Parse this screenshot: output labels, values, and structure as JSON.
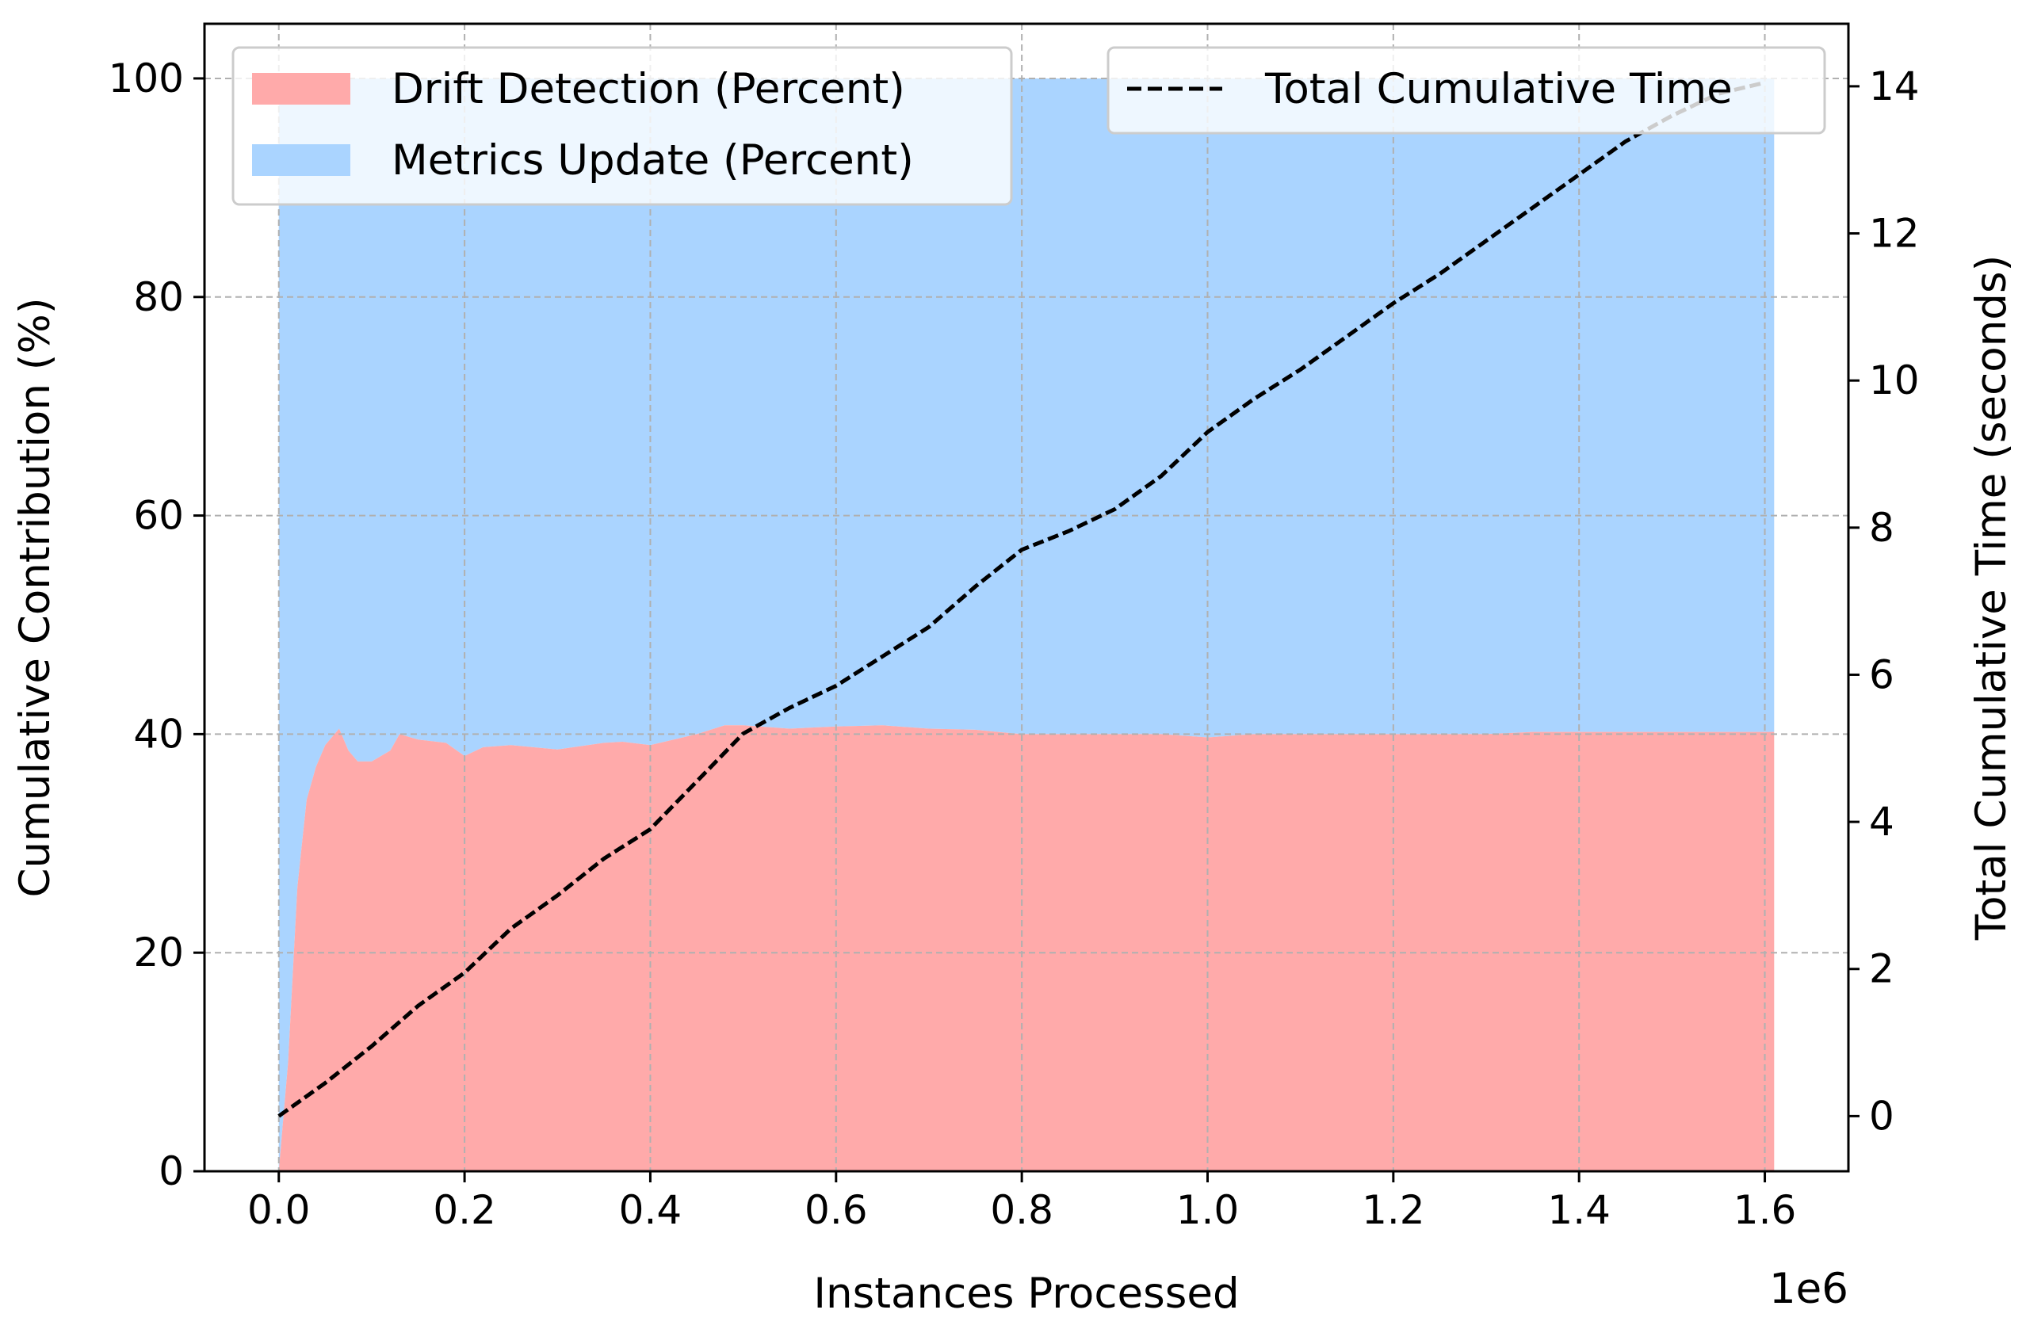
{
  "chart_data": {
    "type": "area",
    "xlabel": "Instances Processed",
    "x_offset_label": "1e6",
    "ylabel": "Cumulative Contribution (%)",
    "y2label": "Total Cumulative Time (seconds)",
    "xlim": [
      -0.08,
      1.69
    ],
    "ylim": [
      0,
      105
    ],
    "y2lim": [
      -0.75,
      14.85
    ],
    "xticks": [
      0.0,
      0.2,
      0.4,
      0.6,
      0.8,
      1.0,
      1.2,
      1.4,
      1.6
    ],
    "xtick_labels": [
      "0.0",
      "0.2",
      "0.4",
      "0.6",
      "0.8",
      "1.0",
      "1.2",
      "1.4",
      "1.6"
    ],
    "yticks": [
      0,
      20,
      40,
      60,
      80,
      100
    ],
    "ytick_labels": [
      "0",
      "20",
      "40",
      "60",
      "80",
      "100"
    ],
    "y2ticks": [
      0,
      2,
      4,
      6,
      8,
      10,
      12,
      14
    ],
    "y2tick_labels": [
      "0",
      "2",
      "4",
      "6",
      "8",
      "10",
      "12",
      "14"
    ],
    "grid": true,
    "x": [
      0.0,
      0.005,
      0.01,
      0.015,
      0.02,
      0.025,
      0.03,
      0.04,
      0.05,
      0.06,
      0.065,
      0.075,
      0.085,
      0.1,
      0.12,
      0.13,
      0.15,
      0.18,
      0.2,
      0.22,
      0.25,
      0.3,
      0.35,
      0.37,
      0.4,
      0.45,
      0.48,
      0.5,
      0.55,
      0.6,
      0.65,
      0.7,
      0.75,
      0.8,
      0.85,
      0.9,
      0.95,
      1.0,
      1.05,
      1.1,
      1.15,
      1.2,
      1.25,
      1.3,
      1.35,
      1.4,
      1.45,
      1.5,
      1.55,
      1.61
    ],
    "series": [
      {
        "name": "Drift Detection (Percent)",
        "kind": "area",
        "color": "#ffaaaa",
        "values": [
          0,
          5,
          10,
          18,
          26,
          30,
          34,
          37,
          39,
          40,
          40.5,
          38.5,
          37.5,
          37.5,
          38.5,
          40,
          39.5,
          39.2,
          38,
          38.8,
          39,
          38.6,
          39.2,
          39.3,
          39,
          40,
          40.8,
          40.8,
          40.5,
          40.7,
          40.8,
          40.5,
          40.4,
          40,
          40,
          40,
          40,
          39.7,
          40,
          40,
          40,
          40,
          40,
          40,
          40.2,
          40.2,
          40.2,
          40.2,
          40.2,
          40.2
        ]
      },
      {
        "name": "Metrics Update (Percent)",
        "kind": "area",
        "color": "#aad4ff",
        "values": [
          100,
          100,
          100,
          100,
          100,
          100,
          100,
          100,
          100,
          100,
          100,
          100,
          100,
          100,
          100,
          100,
          100,
          100,
          100,
          100,
          100,
          100,
          100,
          100,
          100,
          100,
          100,
          100,
          100,
          100,
          100,
          100,
          100,
          100,
          100,
          100,
          100,
          100,
          100,
          100,
          100,
          100,
          100,
          100,
          100,
          100,
          100,
          100,
          100,
          100
        ]
      },
      {
        "name": "Total Cumulative Time",
        "kind": "line",
        "axis": "right",
        "style": "dashed",
        "color": "#000000",
        "x": [
          0.0,
          0.05,
          0.1,
          0.15,
          0.2,
          0.25,
          0.3,
          0.35,
          0.4,
          0.45,
          0.5,
          0.55,
          0.6,
          0.65,
          0.7,
          0.75,
          0.8,
          0.85,
          0.9,
          0.95,
          1.0,
          1.05,
          1.1,
          1.15,
          1.2,
          1.25,
          1.3,
          1.35,
          1.4,
          1.45,
          1.5,
          1.55,
          1.6
        ],
        "values": [
          0.0,
          0.45,
          0.95,
          1.5,
          1.95,
          2.55,
          3.0,
          3.5,
          3.9,
          4.55,
          5.2,
          5.55,
          5.85,
          6.25,
          6.65,
          7.2,
          7.7,
          7.95,
          8.25,
          8.7,
          9.3,
          9.75,
          10.15,
          10.6,
          11.05,
          11.45,
          11.9,
          12.35,
          12.8,
          13.25,
          13.6,
          13.9,
          14.05
        ]
      }
    ],
    "legend_left": {
      "placement": "upper-left",
      "entries": [
        "Drift Detection (Percent)",
        "Metrics Update (Percent)"
      ]
    },
    "legend_right": {
      "placement": "upper-right",
      "entries": [
        "Total Cumulative Time"
      ]
    }
  }
}
